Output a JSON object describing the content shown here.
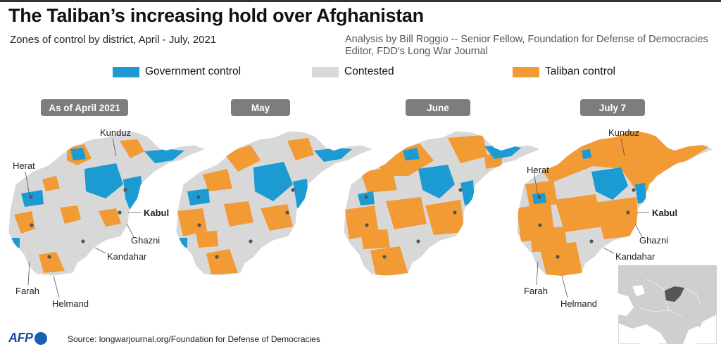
{
  "title": "The Taliban’s increasing hold over Afghanistan",
  "subtitle": "Zones of control by district, April - July, 2021",
  "credit": {
    "line1": "Analysis by Bill Roggio -- Senior Fellow, Foundation for Defense of Democracies",
    "line2": "Editor, FDD's Long War Journal"
  },
  "legend": [
    {
      "label": "Government control",
      "color": "#1b9bd1"
    },
    {
      "label": "Contested",
      "color": "#d8d8d8"
    },
    {
      "label": "Taliban control",
      "color": "#f29a33"
    }
  ],
  "panels": [
    {
      "label": "As of April 2021"
    },
    {
      "label": "May"
    },
    {
      "label": "June"
    },
    {
      "label": "July 7"
    }
  ],
  "cities": {
    "kunduz": "Kunduz",
    "herat": "Herat",
    "kabul": "Kabul",
    "ghazni": "Ghazni",
    "kandahar": "Kandahar",
    "farah": "Farah",
    "helmand": "Helmand"
  },
  "logo": "AFP",
  "source": "Source: longwarjournal.org/Foundation for Defense of Democracies",
  "colors": {
    "government": "#1b9bd1",
    "contested": "#d8d8d8",
    "taliban": "#f29a33",
    "pill": "#7d7d7d"
  },
  "inset": {
    "highlight": "Afghanistan",
    "icon": "locator-map-icon"
  }
}
